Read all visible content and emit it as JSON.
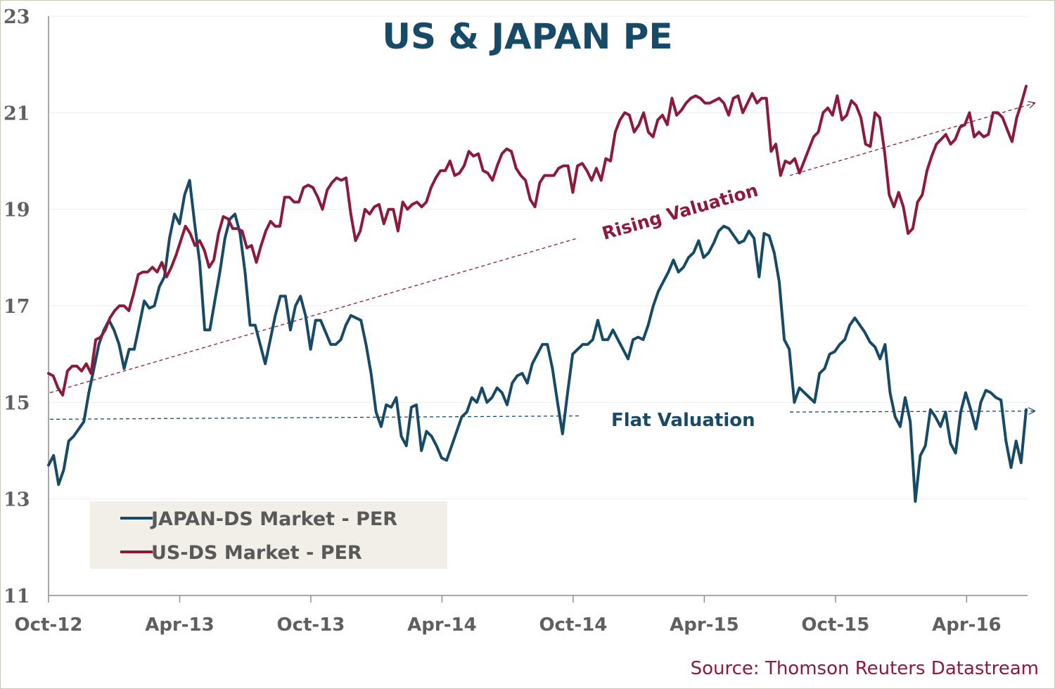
{
  "chart_data": {
    "type": "line",
    "title": "US & JAPAN PE",
    "source": "Source: Thomson Reuters Datastream",
    "ylim": [
      11,
      23
    ],
    "yticks": [
      "11",
      "13",
      "15",
      "17",
      "19",
      "21",
      "23"
    ],
    "xticks": [
      "Oct-12",
      "Apr-13",
      "Oct-13",
      "Apr-14",
      "Oct-14",
      "Apr-15",
      "Oct-15",
      "Apr-16"
    ],
    "grid": true,
    "legend_position": "bottom-left",
    "annotations": {
      "rising": "Rising Valuation",
      "flat": "Flat Valuation"
    },
    "series": [
      {
        "name": "JAPAN-DS Market - PER",
        "color": "#174a66",
        "values": [
          13.7,
          13.9,
          13.3,
          13.6,
          14.2,
          14.3,
          14.45,
          14.6,
          15.2,
          15.7,
          16.2,
          16.5,
          16.7,
          16.5,
          16.2,
          15.7,
          16.1,
          16.1,
          16.6,
          17.1,
          16.95,
          17.0,
          17.4,
          17.6,
          18.4,
          18.9,
          18.7,
          19.3,
          19.6,
          18.7,
          17.9,
          16.5,
          16.5,
          17.1,
          17.7,
          18.4,
          18.8,
          18.9,
          18.5,
          17.7,
          16.6,
          16.6,
          16.2,
          15.8,
          16.3,
          16.8,
          17.2,
          17.2,
          16.5,
          17.0,
          17.2,
          16.8,
          16.1,
          16.7,
          16.7,
          16.45,
          16.2,
          16.2,
          16.3,
          16.6,
          16.8,
          16.75,
          16.7,
          16.2,
          15.6,
          14.8,
          14.5,
          14.95,
          14.9,
          15.1,
          14.3,
          14.1,
          14.9,
          14.95,
          14.0,
          14.4,
          14.3,
          14.1,
          13.85,
          13.8,
          14.1,
          14.4,
          14.7,
          14.8,
          15.1,
          15.0,
          15.3,
          15.0,
          15.1,
          15.3,
          15.2,
          14.95,
          15.4,
          15.55,
          15.6,
          15.4,
          15.8,
          16.0,
          16.2,
          16.2,
          15.7,
          15.0,
          14.35,
          15.2,
          16.0,
          16.1,
          16.2,
          16.2,
          16.3,
          16.7,
          16.3,
          16.3,
          16.5,
          16.3,
          16.1,
          15.9,
          16.3,
          16.35,
          16.3,
          16.6,
          17.0,
          17.3,
          17.5,
          17.7,
          17.95,
          17.7,
          17.8,
          18.0,
          18.1,
          18.35,
          18.0,
          18.1,
          18.3,
          18.55,
          18.65,
          18.6,
          18.45,
          18.3,
          18.35,
          18.55,
          18.4,
          17.6,
          18.5,
          18.45,
          18.1,
          17.5,
          16.3,
          16.1,
          15.0,
          15.3,
          15.2,
          15.1,
          15.0,
          15.6,
          15.7,
          16.0,
          16.05,
          16.2,
          16.3,
          16.6,
          16.75,
          16.6,
          16.45,
          16.25,
          16.15,
          15.9,
          16.2,
          15.2,
          14.7,
          14.5,
          15.1,
          14.6,
          12.95,
          13.9,
          14.1,
          14.85,
          14.7,
          14.5,
          14.8,
          14.15,
          13.95,
          14.8,
          15.2,
          14.85,
          14.45,
          15.0,
          15.25,
          15.2,
          15.1,
          15.05,
          14.2,
          13.65,
          14.2,
          13.75,
          14.85
        ]
      },
      {
        "name": "US-DS Market - PER",
        "color": "#8b1a3b",
        "values": [
          15.6,
          15.55,
          15.3,
          15.15,
          15.65,
          15.75,
          15.75,
          15.65,
          15.8,
          15.6,
          16.3,
          16.35,
          16.5,
          16.75,
          16.9,
          17.0,
          17.0,
          16.9,
          17.25,
          17.65,
          17.7,
          17.7,
          17.8,
          17.7,
          17.9,
          17.6,
          17.8,
          18.05,
          18.35,
          18.65,
          18.5,
          18.25,
          18.35,
          18.15,
          17.8,
          17.95,
          18.5,
          18.85,
          18.8,
          18.6,
          18.6,
          18.55,
          18.2,
          18.25,
          17.9,
          18.25,
          18.55,
          18.75,
          18.65,
          18.65,
          19.25,
          19.25,
          19.15,
          19.15,
          19.45,
          19.5,
          19.45,
          19.25,
          19.0,
          19.4,
          19.55,
          19.65,
          19.6,
          19.65,
          18.9,
          18.35,
          18.55,
          19.0,
          18.9,
          19.05,
          19.1,
          18.7,
          19.0,
          19.0,
          18.55,
          19.15,
          19.0,
          19.1,
          19.15,
          19.05,
          19.15,
          19.45,
          19.65,
          19.8,
          19.8,
          20.0,
          19.7,
          19.75,
          19.9,
          20.2,
          20.1,
          20.15,
          19.8,
          19.75,
          19.6,
          19.9,
          20.15,
          20.25,
          20.2,
          19.85,
          19.7,
          19.6,
          19.2,
          19.05,
          19.55,
          19.7,
          19.7,
          19.7,
          19.85,
          19.9,
          19.9,
          19.35,
          19.9,
          19.95,
          19.8,
          19.6,
          19.85,
          19.6,
          20.05,
          20.0,
          20.6,
          20.85,
          21.0,
          20.95,
          20.6,
          20.75,
          21.0,
          20.6,
          20.5,
          20.85,
          20.95,
          20.75,
          21.3,
          20.95,
          21.05,
          21.2,
          21.3,
          21.35,
          21.3,
          21.2,
          21.2,
          21.25,
          21.3,
          21.2,
          20.95,
          21.3,
          21.35,
          21.0,
          21.2,
          21.4,
          21.2,
          21.3,
          21.3,
          20.2,
          20.35,
          19.7,
          20.0,
          19.95,
          20.05,
          19.75,
          20.0,
          20.25,
          20.5,
          20.6,
          21.0,
          21.1,
          20.95,
          21.35,
          20.85,
          20.95,
          21.25,
          21.15,
          20.9,
          20.35,
          20.3,
          21.0,
          20.9,
          20.2,
          19.3,
          19.05,
          19.35,
          19.05,
          18.5,
          18.6,
          19.15,
          19.3,
          19.8,
          20.1,
          20.35,
          20.45,
          20.55,
          20.35,
          20.45,
          20.7,
          20.75,
          21.0,
          20.5,
          20.6,
          20.5,
          20.55,
          21.0,
          21.0,
          20.9,
          20.65,
          20.4,
          20.9,
          21.2,
          21.55
        ]
      }
    ]
  }
}
